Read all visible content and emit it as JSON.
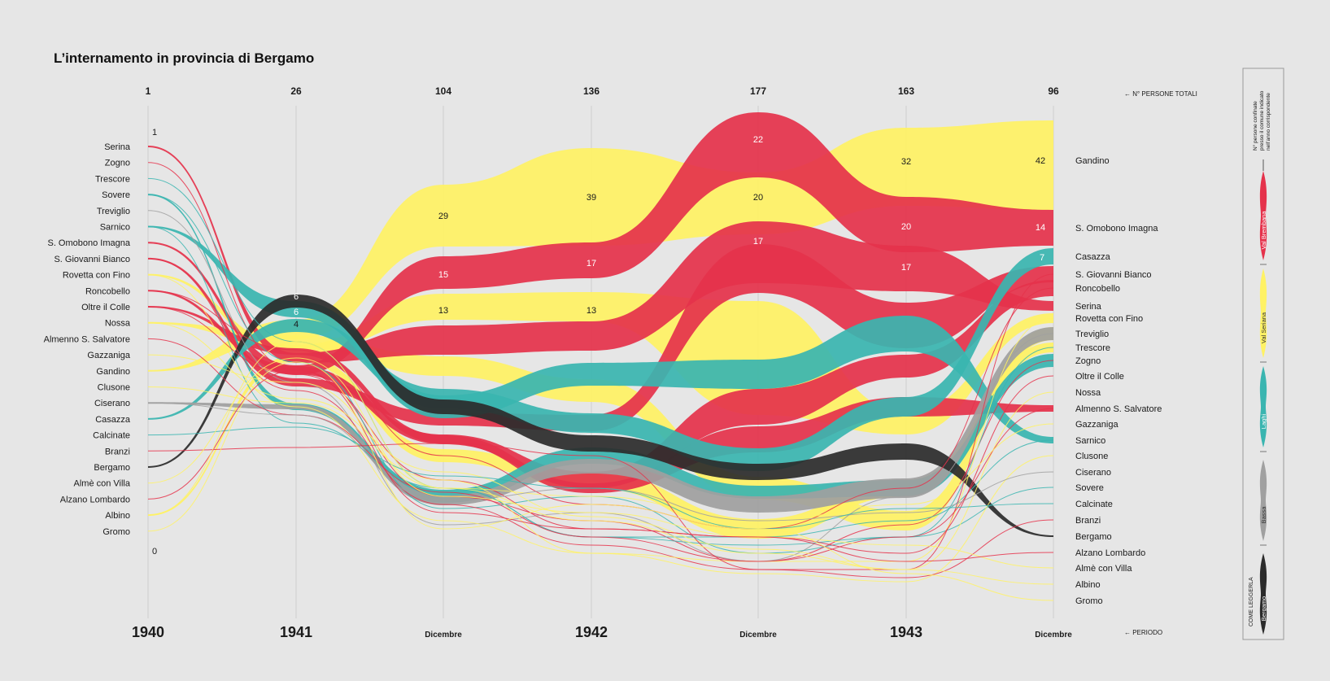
{
  "title": "L’internamento in provincia di Bergamo",
  "legend_box": {
    "caption": "N° persone confinate presso il comune indicato nell’anno corrispondente",
    "how_to_read": "COME LEGGERLA",
    "groups": [
      {
        "name": "Val Brembana",
        "color": "#e5324b"
      },
      {
        "name": "Val Seriana",
        "color": "#fff264"
      },
      {
        "name": "Laghi",
        "color": "#3ab5b0"
      },
      {
        "name": "Bassa",
        "color": "#a0a0a0"
      },
      {
        "name": "Bergamo",
        "color": "#2b2b2b"
      }
    ]
  },
  "totals_label": "N° PERSONE TOTALI",
  "period_label": "PERIODO",
  "chart_data": {
    "type": "area",
    "subtype": "bump / stream ribbons",
    "periods": [
      "1940",
      "1941",
      "Dicembre",
      "1942",
      "Dicembre",
      "1943",
      "Dicembre"
    ],
    "totals": [
      1,
      26,
      104,
      136,
      177,
      163,
      96
    ],
    "start_labels": [
      "Serina",
      "Zogno",
      "Trescore",
      "Sovere",
      "Treviglio",
      "Sarnico",
      "S. Omobono Imagna",
      "S. Giovanni Bianco",
      "Rovetta con Fino",
      "Roncobello",
      "Oltre il Colle",
      "Nossa",
      "Almenno S. Salvatore",
      "Gazzaniga",
      "Gandino",
      "Clusone",
      "Ciserano",
      "Casazza",
      "Calcinate",
      "Branzi",
      "Bergamo",
      "Almè con Villa",
      "Alzano Lombardo",
      "Albino",
      "Gromo"
    ],
    "end_labels": [
      "Gandino",
      "S. Omobono Imagna",
      "Casazza",
      "S. Giovanni Bianco",
      "Roncobello",
      "Serina",
      "Rovetta con Fino",
      "Treviglio",
      "Trescore",
      "Zogno",
      "Oltre il Colle",
      "Nossa",
      "Almenno S. Salvatore",
      "Gazzaniga",
      "Sarnico",
      "Clusone",
      "Ciserano",
      "Sovere",
      "Calcinate",
      "Branzi",
      "Bergamo",
      "Alzano Lombardo",
      "Almè con Villa",
      "Albino",
      "Gromo"
    ],
    "scale_labels": {
      "max": "1",
      "min": "0"
    },
    "series": [
      {
        "name": "Gandino",
        "group": "Val Seriana",
        "values": [
          0,
          4,
          29,
          39,
          20,
          32,
          42
        ]
      },
      {
        "name": "S. Omobono Imagna",
        "group": "Val Brembana",
        "values": [
          0,
          0,
          15,
          17,
          22,
          20,
          14
        ]
      },
      {
        "name": "Casazza",
        "group": "Laghi",
        "values": [
          0,
          6,
          null,
          null,
          null,
          null,
          7
        ]
      },
      {
        "name": "Serina",
        "group": "Val Brembana",
        "values": [
          1,
          null,
          null,
          null,
          17,
          17,
          null
        ]
      },
      {
        "name": "Rovetta con Fino",
        "group": "Val Seriana",
        "values": [
          0,
          null,
          13,
          13,
          null,
          null,
          null
        ]
      },
      {
        "name": "Bergamo",
        "group": "Bergamo",
        "values": [
          0,
          6,
          null,
          null,
          null,
          null,
          null
        ]
      }
    ],
    "value_labels": [
      {
        "text": "1",
        "period": 0
      },
      {
        "text": "0",
        "period": 0
      },
      {
        "text": "6",
        "period": 1
      },
      {
        "text": "6",
        "period": 1
      },
      {
        "text": "4",
        "period": 1
      },
      {
        "text": "29",
        "period": 2
      },
      {
        "text": "15",
        "period": 2
      },
      {
        "text": "13",
        "period": 2
      },
      {
        "text": "39",
        "period": 3
      },
      {
        "text": "17",
        "period": 3
      },
      {
        "text": "13",
        "period": 3
      },
      {
        "text": "22",
        "period": 4
      },
      {
        "text": "20",
        "period": 4
      },
      {
        "text": "17",
        "period": 4
      },
      {
        "text": "32",
        "period": 5
      },
      {
        "text": "20",
        "period": 5
      },
      {
        "text": "17",
        "period": 5
      },
      {
        "text": "42",
        "period": 6
      },
      {
        "text": "14",
        "period": 6
      },
      {
        "text": "7",
        "period": 6
      }
    ]
  }
}
